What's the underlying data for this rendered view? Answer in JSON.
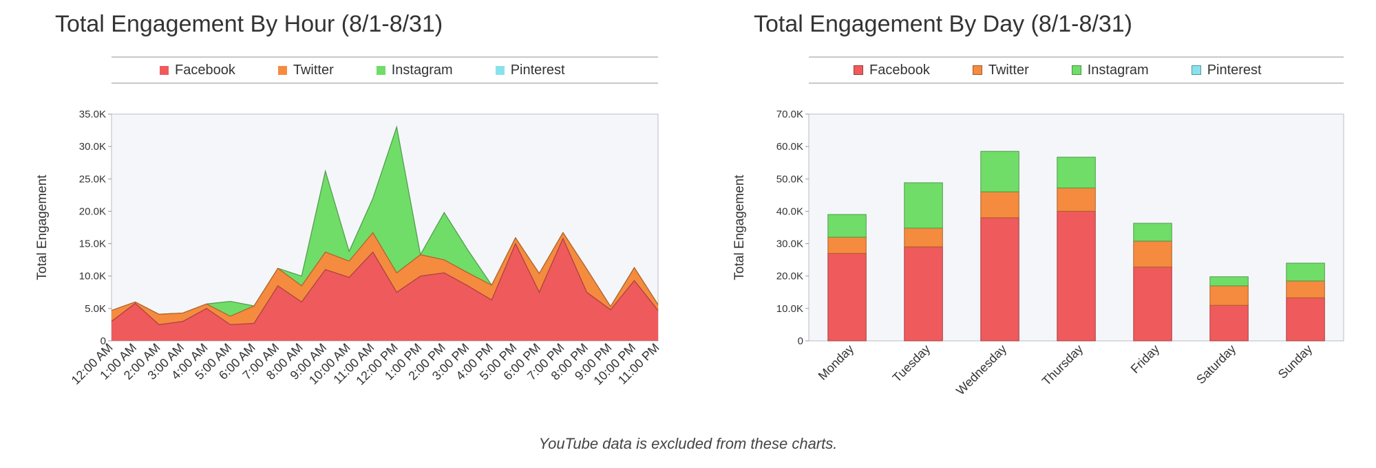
{
  "colors": {
    "facebook": "#ef5a5c",
    "twitter": "#f58b3f",
    "instagram": "#70dd68",
    "pinterest": "#88e2ee",
    "plot_bg": "#f5f6fa"
  },
  "footnote": "YouTube data is excluded from these charts.",
  "chart_data": [
    {
      "type": "area",
      "stacked": true,
      "title": "Total Engagement By Hour (8/1-8/31)",
      "xlabel": "",
      "ylabel": "Total Engagement",
      "ylim": [
        0,
        35000
      ],
      "yticks": [
        0,
        5000,
        10000,
        15000,
        20000,
        25000,
        30000,
        35000
      ],
      "ytick_labels": [
        "0",
        "5.0K",
        "10.0K",
        "15.0K",
        "20.0K",
        "25.0K",
        "30.0K",
        "35.0K"
      ],
      "legend_position": "top",
      "grid": false,
      "categories": [
        "12:00 AM",
        "1:00 AM",
        "2:00 AM",
        "3:00 AM",
        "4:00 AM",
        "5:00 AM",
        "6:00 AM",
        "7:00 AM",
        "8:00 AM",
        "9:00 AM",
        "10:00 AM",
        "11:00 AM",
        "12:00 PM",
        "1:00 PM",
        "2:00 PM",
        "3:00 PM",
        "4:00 PM",
        "5:00 PM",
        "6:00 PM",
        "7:00 PM",
        "8:00 PM",
        "9:00 PM",
        "10:00 PM",
        "11:00 PM"
      ],
      "series": [
        {
          "name": "Facebook",
          "color_key": "facebook",
          "values": [
            3000,
            5800,
            2500,
            3000,
            5000,
            2500,
            2700,
            8500,
            6000,
            11000,
            9800,
            13700,
            7500,
            10000,
            10500,
            8500,
            6300,
            15000,
            7500,
            15800,
            7500,
            4800,
            9300,
            4700
          ]
        },
        {
          "name": "Twitter",
          "color_key": "twitter",
          "values": [
            1700,
            200,
            1600,
            1300,
            700,
            1300,
            2700,
            2700,
            2500,
            2700,
            2500,
            3000,
            3000,
            3300,
            2000,
            2000,
            2300,
            900,
            2900,
            900,
            3600,
            500,
            2000,
            900
          ]
        },
        {
          "name": "Instagram",
          "color_key": "instagram",
          "values": [
            0,
            0,
            0,
            0,
            0,
            2300,
            0,
            0,
            1500,
            12500,
            1500,
            5300,
            22500,
            0,
            7300,
            3500,
            0,
            0,
            0,
            0,
            0,
            0,
            0,
            0
          ]
        },
        {
          "name": "Pinterest",
          "color_key": "pinterest",
          "values": [
            0,
            0,
            0,
            0,
            0,
            0,
            0,
            0,
            0,
            0,
            0,
            0,
            0,
            0,
            0,
            0,
            0,
            0,
            0,
            0,
            0,
            0,
            0,
            0
          ]
        }
      ]
    },
    {
      "type": "bar",
      "stacked": true,
      "title": "Total Engagement By Day (8/1-8/31)",
      "xlabel": "",
      "ylabel": "Total Engagement",
      "ylim": [
        0,
        70000
      ],
      "yticks": [
        0,
        10000,
        20000,
        30000,
        40000,
        50000,
        60000,
        70000
      ],
      "ytick_labels": [
        "0",
        "10.0K",
        "20.0K",
        "30.0K",
        "40.0K",
        "50.0K",
        "60.0K",
        "70.0K"
      ],
      "legend_position": "top",
      "grid": false,
      "categories": [
        "Monday",
        "Tuesday",
        "Wednesday",
        "Thursday",
        "Friday",
        "Saturday",
        "Sunday"
      ],
      "series": [
        {
          "name": "Facebook",
          "color_key": "facebook",
          "values": [
            27000,
            29000,
            38000,
            40000,
            22800,
            11000,
            13300
          ]
        },
        {
          "name": "Twitter",
          "color_key": "twitter",
          "values": [
            5000,
            5800,
            8000,
            7200,
            8000,
            6000,
            5200
          ]
        },
        {
          "name": "Instagram",
          "color_key": "instagram",
          "values": [
            7000,
            14000,
            12500,
            9500,
            5500,
            2800,
            5500
          ]
        },
        {
          "name": "Pinterest",
          "color_key": "pinterest",
          "values": [
            0,
            0,
            0,
            0,
            0,
            0,
            0
          ]
        }
      ]
    }
  ]
}
